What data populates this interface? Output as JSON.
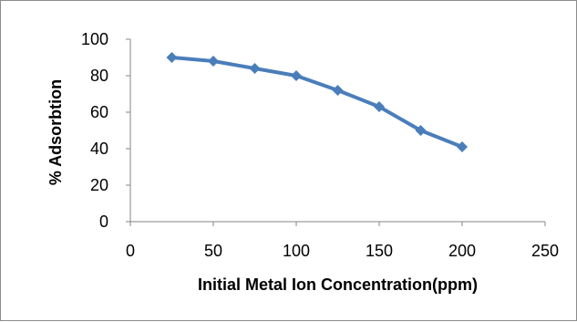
{
  "chart_data": {
    "type": "line",
    "title": "",
    "xlabel": "Initial Metal Ion Concentration(ppm)",
    "ylabel": "% Adsorbtion",
    "xlim": [
      0,
      250
    ],
    "ylim": [
      0,
      100
    ],
    "x_ticks": [
      0,
      50,
      100,
      150,
      200,
      250
    ],
    "y_ticks": [
      0,
      20,
      40,
      60,
      80,
      100
    ],
    "grid": false,
    "legend": "none",
    "marker": "diamond",
    "series_color": "#4a7ebb",
    "series": [
      {
        "x": [
          25,
          50,
          75,
          100,
          125,
          150,
          175,
          200
        ],
        "values": [
          90,
          88,
          84,
          80,
          72,
          63,
          50,
          41
        ]
      }
    ]
  }
}
